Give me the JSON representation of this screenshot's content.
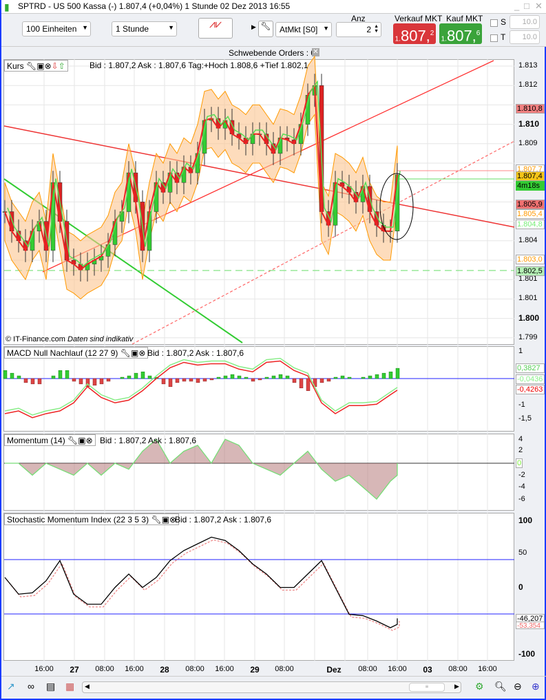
{
  "title": "SPTRD - US 500 Kassa (-)    1.807,4 (+0,04%)    1 Stunde  02 Dez 2013 16:55",
  "toolbar": {
    "units": "100 Einheiten",
    "interval": "1 Stunde",
    "order_type": "AtMkt [S0]",
    "anz_label": "Anz",
    "anz_value": "2",
    "sell_label": "Verkauf MKT",
    "sell_prefix": "1.",
    "sell_big": "807,",
    "sell_small": "2",
    "buy_label": "Kauf MKT",
    "buy_prefix": "1.",
    "buy_big": "807,",
    "buy_small": "6",
    "s_label": "S",
    "t_label": "T",
    "s_value": "10.0",
    "t_value": "10.0",
    "sell_color": "#d9363a",
    "buy_color": "#3aa33a"
  },
  "pending_orders": "Schwebende Orders : 0",
  "main": {
    "label": "Kurs",
    "info": "Bid : 1.807,2 Ask : 1.807,6 Tag:+Hoch 1.808,6 +Tief 1.802,1",
    "copyright": "© IT-Finance.com",
    "disclaimer": "Daten sind indikativ",
    "axis": [
      "1.813",
      "1.812",
      "1.811",
      "1.810",
      "1.809",
      "1.808",
      "1.804",
      "1.802",
      "1.801",
      "1.800",
      "1.799"
    ],
    "tags": {
      "t1": "1.810,8",
      "t2": "1.807,7",
      "t3": "1.807,4",
      "timer": "4m18s",
      "t4": "1.805,9",
      "t5": "1.805,4",
      "t6": "1.804,8",
      "t7": "1.803,0",
      "t8": "1.802,5"
    }
  },
  "macd": {
    "label": "MACD Null Nachlauf (12 27 9)",
    "info": "Bid : 1.807,2 Ask : 1.807,6",
    "axis": [
      "1",
      "-1",
      "-1,5"
    ],
    "tags": [
      "0,3827",
      "-0,0436",
      "-0,4263"
    ]
  },
  "momentum": {
    "label": "Momentum (14)",
    "info": "Bid : 1.807,2 Ask : 1.807,6",
    "axis": [
      "4",
      "2",
      "-2",
      "-4",
      "-6"
    ],
    "tag": "0"
  },
  "smi": {
    "label": "Stochastic Momentum Index (22 3 5 3)",
    "info": "Bid : 1.807,2 Ask : 1.807,6",
    "axis": [
      "100",
      "50",
      "0",
      "-100"
    ],
    "tags": [
      "-46,207",
      "-53,354"
    ]
  },
  "time_axis": [
    "16:00",
    "27",
    "08:00",
    "16:00",
    "28",
    "08:00",
    "16:00",
    "29",
    "08:00",
    "Dez",
    "08:00",
    "16:00",
    "03",
    "08:00",
    "16:00"
  ],
  "chart_data": {
    "type": "candlestick",
    "closes": [
      1.8055,
      1.8045,
      1.804,
      1.8035,
      1.8045,
      1.805,
      1.8035,
      1.807,
      1.805,
      1.803,
      1.8028,
      1.8025,
      1.8028,
      1.803,
      1.8032,
      1.8038,
      1.805,
      1.8055,
      1.8075,
      1.806,
      1.8035,
      1.8055,
      1.807,
      1.8065,
      1.8075,
      1.807,
      1.8078,
      1.8075,
      1.8085,
      1.8102,
      1.8103,
      1.8098,
      1.8102,
      1.8095,
      1.8093,
      1.809,
      1.8095,
      1.8095,
      1.809,
      1.8085,
      1.8093,
      1.8092,
      1.809,
      1.81,
      1.8115,
      1.812,
      1.8055,
      1.8048,
      1.807,
      1.8068,
      1.8065,
      1.806,
      1.8068,
      1.8055,
      1.8048,
      1.8045,
      1.8045,
      1.8074
    ],
    "macd": [
      -1.3,
      -1.2,
      -1.45,
      -1.3,
      -1.2,
      -0.9,
      -0.3,
      -0.7,
      -0.9,
      -0.8,
      -0.45,
      0.0,
      0.4,
      0.6,
      0.5,
      0.55,
      0.55,
      0.35,
      0.25,
      0.6,
      0.65,
      0.3,
      0.1,
      -0.9,
      -1.3,
      -1.0,
      -1.0,
      -0.95,
      -0.6,
      -0.43
    ],
    "macd_hist": [
      0.3,
      0.2,
      0.1,
      -0.15,
      -0.2,
      -0.2,
      0.0,
      0.1,
      0.3,
      0.3,
      -0.1,
      -0.2,
      -0.3,
      -0.25,
      -0.2,
      -0.1,
      0.0,
      0.05,
      0.1,
      0.2,
      0.25,
      0.1,
      0.05,
      -0.2,
      -0.3,
      -0.15,
      -0.1,
      -0.1,
      -0.15,
      -0.1,
      -0.05,
      0.05,
      0.1,
      0.15,
      0.1,
      0.05,
      -0.1,
      -0.05,
      0.05,
      0.1,
      0.15,
      0.1,
      -0.15,
      -0.35,
      -0.45,
      -0.3,
      -0.15,
      -0.1,
      0.05,
      0.1,
      0.05,
      0.0,
      0.05,
      0.1,
      0.15,
      0.2,
      0.25,
      0.38
    ],
    "momentum": [
      0,
      0,
      -2,
      0,
      -1,
      -2,
      0,
      -2,
      0,
      -1,
      2,
      4,
      0,
      2,
      3,
      0,
      4,
      3,
      0,
      -1,
      -2,
      0,
      2,
      -1,
      -3,
      -2,
      -4,
      -6,
      -3,
      -2,
      0
    ],
    "smi": [
      15,
      -10,
      -8,
      10,
      40,
      -10,
      -25,
      -25,
      0,
      20,
      0,
      15,
      40,
      55,
      65,
      75,
      70,
      55,
      35,
      20,
      0,
      0,
      20,
      40,
      0,
      -40,
      -42,
      -50,
      -60,
      -55,
      -46
    ]
  }
}
